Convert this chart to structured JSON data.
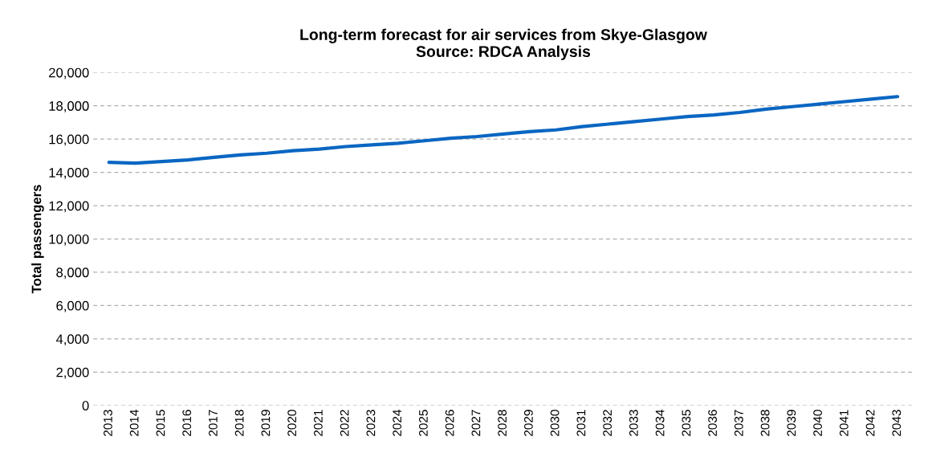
{
  "chart_data": {
    "type": "line",
    "title": "Long-term forecast for air services from Skye-Glasgow\nSource: RDCA Analysis",
    "ylabel": "Total passengers",
    "categories": [
      "2013",
      "2014",
      "2015",
      "2016",
      "2017",
      "2018",
      "2019",
      "2020",
      "2021",
      "2022",
      "2023",
      "2024",
      "2025",
      "2026",
      "2027",
      "2028",
      "2029",
      "2030",
      "2031",
      "2032",
      "2033",
      "2034",
      "2035",
      "2036",
      "2037",
      "2038",
      "2039",
      "2040",
      "2041",
      "2042",
      "2043"
    ],
    "series": [
      {
        "color": "#0a66c2",
        "values": [
          14600,
          14550,
          14650,
          14750,
          14900,
          15050,
          15150,
          15300,
          15400,
          15550,
          15650,
          15750,
          15900,
          16050,
          16150,
          16300,
          16450,
          16550,
          16750,
          16900,
          17050,
          17200,
          17350,
          17450,
          17600,
          17800,
          17950,
          18100,
          18250,
          18400,
          18550
        ]
      }
    ],
    "ylim": [
      0,
      20000
    ],
    "yticks": [
      {
        "value": 0,
        "label": "0"
      },
      {
        "value": 2000,
        "label": "2,000"
      },
      {
        "value": 4000,
        "label": "4,000"
      },
      {
        "value": 6000,
        "label": "6,000"
      },
      {
        "value": 8000,
        "label": "8,000"
      },
      {
        "value": 10000,
        "label": "10,000"
      },
      {
        "value": 12000,
        "label": "12,000"
      },
      {
        "value": 14000,
        "label": "14,000"
      },
      {
        "value": 16000,
        "label": "16,000"
      },
      {
        "value": 18000,
        "label": "18,000"
      },
      {
        "value": 20000,
        "label": "20,000"
      }
    ],
    "grid": "y",
    "marker": "none",
    "line_style": "solid"
  }
}
